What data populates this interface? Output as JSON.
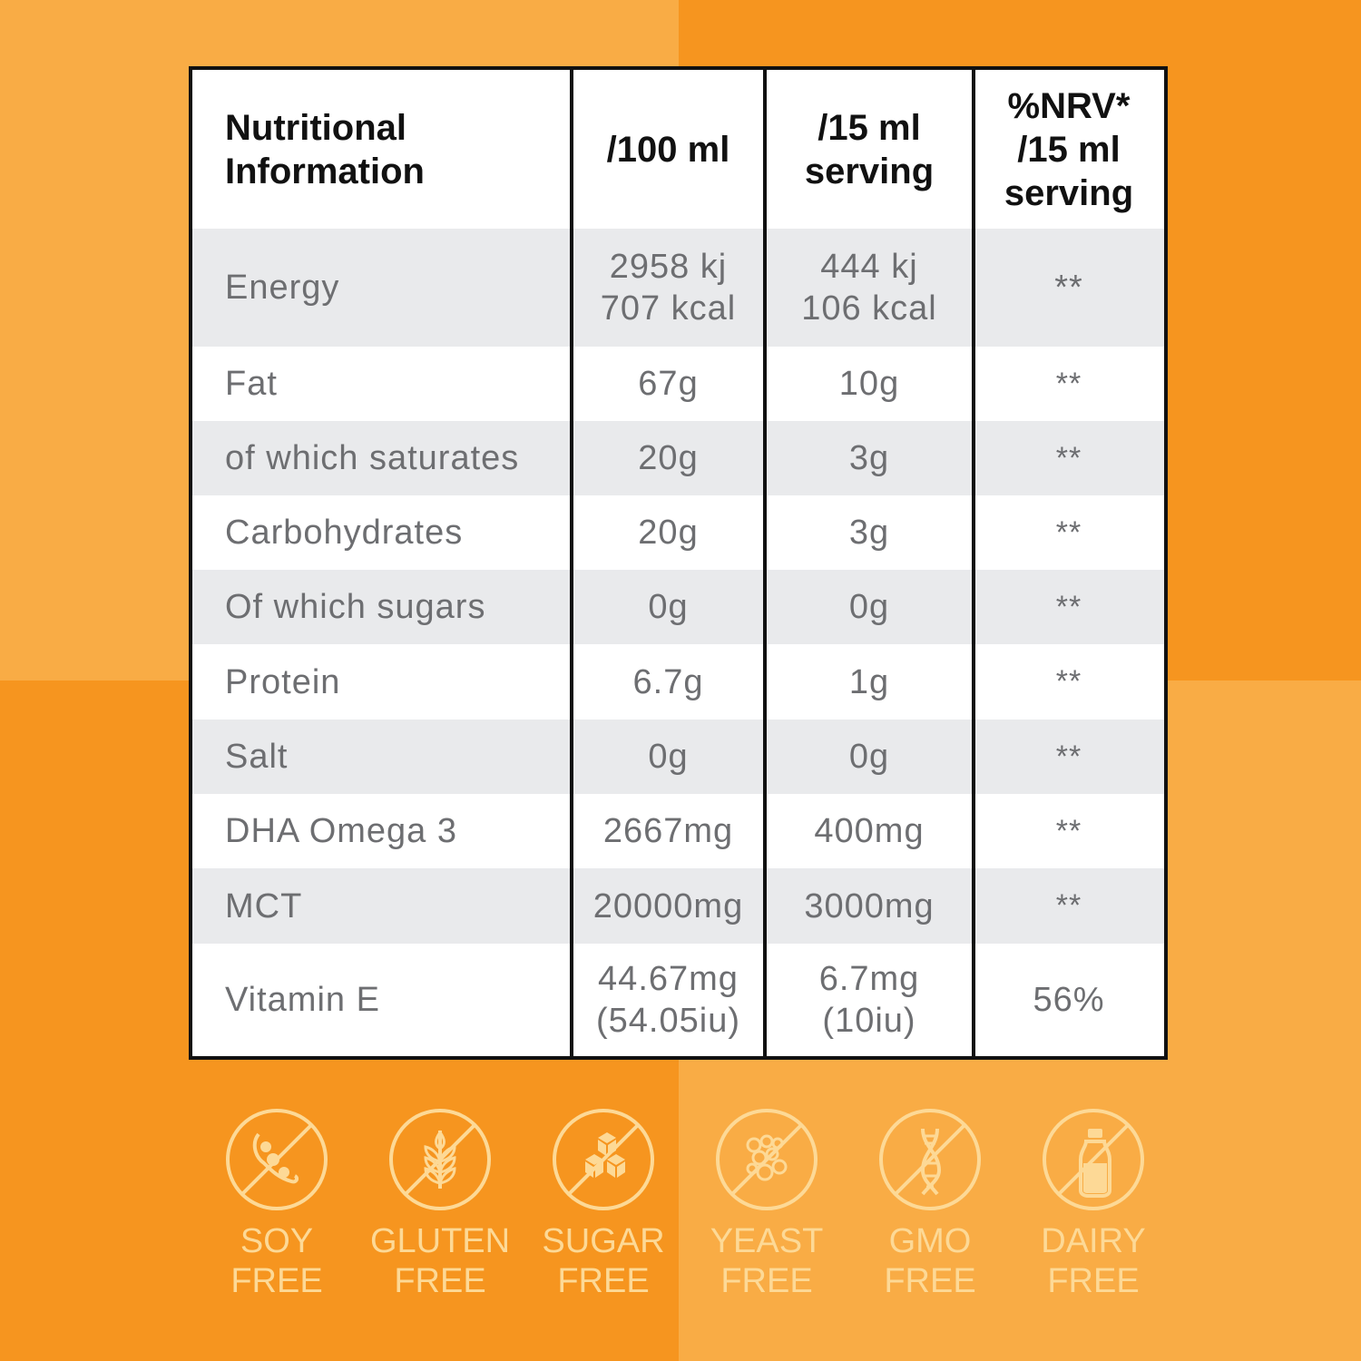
{
  "colors": {
    "background_light": "#F9AC45",
    "background_dark": "#F6951F",
    "row_gray": "#E9EAEC",
    "text_gray": "#6D6E71",
    "icon_cream": "#FDD996"
  },
  "table": {
    "headers": [
      "Nutritional\nInformation",
      "/100 ml",
      "/15 ml\nserving",
      "%NRV*\n/15 ml\nserving"
    ],
    "rows": [
      {
        "name": "Energy",
        "per100": "2958 kj\n707 kcal",
        "per15": "444 kj\n106 kcal",
        "nrv": "**"
      },
      {
        "name": "Fat",
        "per100": "67g",
        "per15": "10g",
        "nrv": "**"
      },
      {
        "name": "of which saturates",
        "per100": "20g",
        "per15": "3g",
        "nrv": "**"
      },
      {
        "name": "Carbohydrates",
        "per100": "20g",
        "per15": "3g",
        "nrv": "**"
      },
      {
        "name": "Of which sugars",
        "per100": "0g",
        "per15": "0g",
        "nrv": "**"
      },
      {
        "name": "Protein",
        "per100": "6.7g",
        "per15": "1g",
        "nrv": "**"
      },
      {
        "name": "Salt",
        "per100": "0g",
        "per15": "0g",
        "nrv": "**"
      },
      {
        "name": "DHA Omega 3",
        "per100": "2667mg",
        "per15": "400mg",
        "nrv": "**"
      },
      {
        "name": "MCT",
        "per100": "20000mg",
        "per15": "3000mg",
        "nrv": "**"
      },
      {
        "name": "Vitamin E",
        "per100": "44.67mg\n(54.05iu)",
        "per15": "6.7mg\n(10iu)",
        "nrv": "56%"
      }
    ]
  },
  "badges": [
    {
      "icon": "soy-icon",
      "line1": "SOY",
      "line2": "FREE"
    },
    {
      "icon": "wheat-icon",
      "line1": "GLUTEN",
      "line2": "FREE"
    },
    {
      "icon": "sugar-cubes-icon",
      "line1": "SUGAR",
      "line2": "FREE"
    },
    {
      "icon": "yeast-icon",
      "line1": "YEAST",
      "line2": "FREE"
    },
    {
      "icon": "dna-icon",
      "line1": "GMO",
      "line2": "FREE"
    },
    {
      "icon": "milk-bottle-icon",
      "line1": "DAIRY",
      "line2": "FREE"
    }
  ]
}
